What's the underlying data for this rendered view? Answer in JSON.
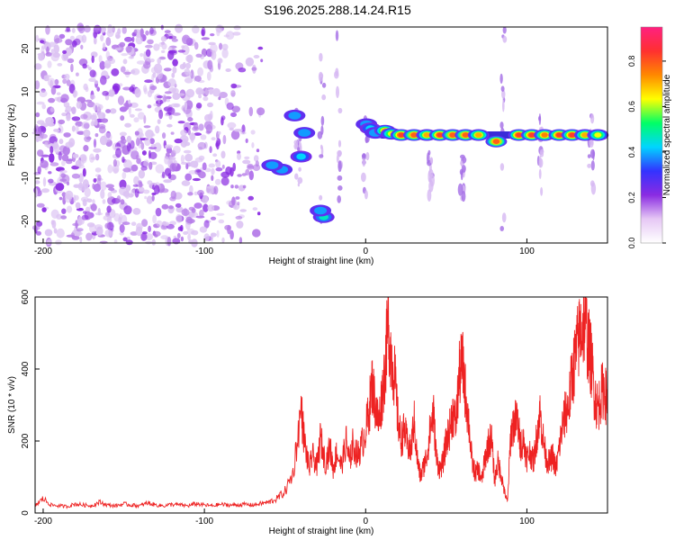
{
  "title": "S196.2025.288.14.24.R15",
  "chart_data": [
    {
      "type": "heatmap",
      "name": "spectrogram",
      "title": "S196.2025.288.14.24.R15",
      "xlabel": "Height of straight line (km)",
      "ylabel": "Frequency (Hz)",
      "xlim": [
        -205,
        150
      ],
      "ylim": [
        -25,
        25
      ],
      "xticks": [
        -200,
        -100,
        0,
        100
      ],
      "yticks": [
        -20,
        -10,
        0,
        10,
        20
      ],
      "xtick_labels": [
        "-200",
        "-100",
        "0",
        "100"
      ],
      "ytick_labels": [
        "-20",
        "-10",
        "0",
        "10",
        "20"
      ],
      "colorbar": {
        "label": "Normalized spectral amplitude",
        "range": [
          0,
          0.95
        ],
        "ticks": [
          0,
          0.2,
          0.4,
          0.6,
          0.8
        ],
        "tick_labels": [
          "0.0",
          "0.2",
          "0.4",
          "0.6",
          "0.8"
        ],
        "colormap": [
          "#ffffff",
          "#e6c8f5",
          "#8a2be2",
          "#3333ff",
          "#00d5ff",
          "#00ff66",
          "#ffff00",
          "#ff8800",
          "#ff3030",
          "#ff2080"
        ]
      },
      "noise_region_km": [
        -205,
        -60
      ],
      "features": [
        {
          "x": 0.5,
          "y": 2.5,
          "amp": 0.3
        },
        {
          "x": 3,
          "y": 1.5,
          "amp": 0.35
        },
        {
          "x": 6,
          "y": 0.5,
          "amp": 0.3
        },
        {
          "x": 12,
          "y": 1,
          "amp": 0.7
        },
        {
          "x": 16,
          "y": 0.3,
          "amp": 0.6
        },
        {
          "x": 22,
          "y": 0,
          "amp": 0.85
        },
        {
          "x": 30,
          "y": 0,
          "amp": 0.8
        },
        {
          "x": 38,
          "y": 0,
          "amp": 0.7
        },
        {
          "x": 46,
          "y": 0,
          "amp": 0.85
        },
        {
          "x": 54,
          "y": 0,
          "amp": 0.8
        },
        {
          "x": 62,
          "y": 0,
          "amp": 0.8
        },
        {
          "x": 70,
          "y": 0,
          "amp": 0.7
        },
        {
          "x": 81,
          "y": -1.5,
          "amp": 0.8
        },
        {
          "x": 95,
          "y": 0,
          "amp": 0.85
        },
        {
          "x": 103,
          "y": 0,
          "amp": 0.85
        },
        {
          "x": 111,
          "y": 0,
          "amp": 0.75
        },
        {
          "x": 120,
          "y": 0,
          "amp": 0.85
        },
        {
          "x": 128,
          "y": 0,
          "amp": 0.85
        },
        {
          "x": 136,
          "y": 0,
          "amp": 0.7
        },
        {
          "x": 144,
          "y": 0,
          "amp": 0.6
        },
        {
          "x": -26,
          "y": -19,
          "amp": 0.4
        },
        {
          "x": -28,
          "y": -17.5,
          "amp": 0.3
        },
        {
          "x": -44,
          "y": 4.5,
          "amp": 0.3
        },
        {
          "x": -38,
          "y": 0.5,
          "amp": 0.3
        },
        {
          "x": -40,
          "y": -5,
          "amp": 0.35
        },
        {
          "x": -52,
          "y": -8,
          "amp": 0.3
        },
        {
          "x": -58,
          "y": -7,
          "amp": 0.3
        }
      ],
      "streaks": [
        {
          "x": -42,
          "y0": -12,
          "y1": 6
        },
        {
          "x": -27,
          "y0": -22,
          "y1": 22
        },
        {
          "x": -17,
          "y0": -20,
          "y1": 24
        },
        {
          "x": 0,
          "y0": -14,
          "y1": 6
        },
        {
          "x": 85,
          "y0": -25,
          "y1": 25
        },
        {
          "x": 108,
          "y0": -14,
          "y1": 4
        },
        {
          "x": 140,
          "y0": -16,
          "y1": 5
        },
        {
          "x": 40,
          "y0": -14,
          "y1": -4
        },
        {
          "x": 60,
          "y0": -16,
          "y1": -4
        }
      ]
    },
    {
      "type": "line",
      "name": "snr",
      "xlabel": "Height of straight line (km)",
      "ylabel": "SNR (10 * v/v)",
      "xlim": [
        -205,
        150
      ],
      "ylim": [
        0,
        600
      ],
      "xticks": [
        -200,
        -100,
        0,
        100
      ],
      "yticks": [
        0,
        200,
        400,
        600
      ],
      "xtick_labels": [
        "-200",
        "-100",
        "0",
        "100"
      ],
      "ytick_labels": [
        "0",
        "200",
        "400",
        "600"
      ],
      "line_color": "#ee2222",
      "series": [
        {
          "name": "SNR",
          "x": [
            -205,
            -200,
            -195,
            -190,
            -185,
            -180,
            -175,
            -170,
            -165,
            -160,
            -155,
            -150,
            -145,
            -140,
            -135,
            -130,
            -125,
            -120,
            -115,
            -110,
            -105,
            -100,
            -95,
            -90,
            -85,
            -80,
            -75,
            -70,
            -65,
            -60,
            -55,
            -50,
            -45,
            -40,
            -38,
            -35,
            -33,
            -30,
            -28,
            -25,
            -22,
            -20,
            -18,
            -15,
            -12,
            -10,
            -8,
            -5,
            -3,
            0,
            2,
            4,
            6,
            8,
            10,
            12,
            14,
            16,
            18,
            20,
            22,
            24,
            26,
            28,
            30,
            32,
            34,
            36,
            38,
            40,
            42,
            44,
            46,
            48,
            50,
            52,
            54,
            56,
            58,
            60,
            62,
            64,
            66,
            68,
            70,
            72,
            74,
            76,
            78,
            80,
            82,
            84,
            86,
            88,
            90,
            92,
            94,
            96,
            98,
            100,
            102,
            104,
            106,
            108,
            110,
            112,
            114,
            116,
            118,
            120,
            122,
            124,
            126,
            128,
            130,
            132,
            134,
            136,
            138,
            140,
            142,
            144,
            146,
            148,
            150
          ],
          "values": [
            20,
            40,
            22,
            20,
            18,
            25,
            22,
            20,
            30,
            22,
            20,
            25,
            22,
            20,
            28,
            22,
            20,
            24,
            22,
            20,
            26,
            22,
            20,
            24,
            22,
            22,
            24,
            22,
            26,
            30,
            40,
            60,
            110,
            290,
            200,
            120,
            160,
            130,
            210,
            140,
            180,
            120,
            170,
            130,
            200,
            140,
            190,
            160,
            180,
            230,
            280,
            360,
            300,
            250,
            320,
            400,
            530,
            430,
            380,
            260,
            200,
            230,
            190,
            170,
            260,
            150,
            100,
            130,
            160,
            230,
            280,
            150,
            120,
            140,
            200,
            230,
            280,
            250,
            380,
            420,
            330,
            250,
            140,
            110,
            120,
            90,
            150,
            190,
            210,
            90,
            140,
            110,
            60,
            30,
            220,
            250,
            260,
            190,
            200,
            150,
            170,
            140,
            210,
            280,
            210,
            150,
            140,
            160,
            120,
            180,
            240,
            280,
            300,
            380,
            430,
            480,
            520,
            540,
            470,
            420,
            330,
            290,
            330,
            350,
            300
          ]
        }
      ]
    }
  ]
}
